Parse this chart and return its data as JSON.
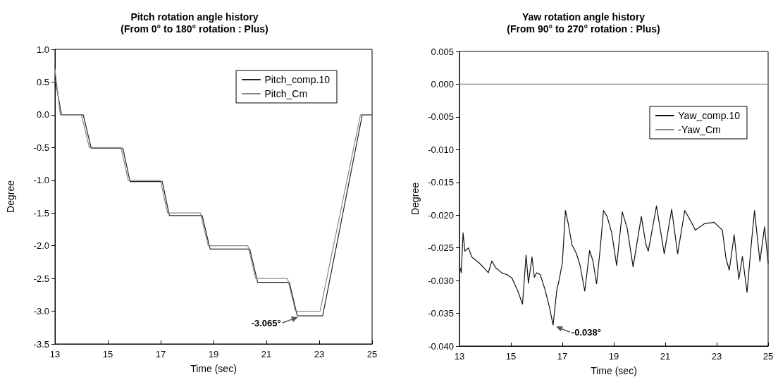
{
  "chart_data": [
    {
      "type": "line",
      "title": "Pitch rotation angle history",
      "subtitle": "(From 0° to 180° rotation : Plus)",
      "xlabel": "Time (sec)",
      "ylabel": "Degree",
      "xlim": [
        13,
        25
      ],
      "xticks": [
        13,
        15,
        17,
        19,
        21,
        23,
        25
      ],
      "ylim": [
        -3.5,
        1.0
      ],
      "yticks": [
        {
          "value": -3.5,
          "label": "-3.5"
        },
        {
          "value": -3,
          "label": "-3.0"
        },
        {
          "value": -2.5,
          "label": "-2.5"
        },
        {
          "value": -2,
          "label": "-2.0"
        },
        {
          "value": -1.5,
          "label": "-1.5"
        },
        {
          "value": -1,
          "label": "-1.0"
        },
        {
          "value": -0.5,
          "label": "-0.5"
        },
        {
          "value": 0,
          "label": "0.0"
        },
        {
          "value": 0.5,
          "label": "0.5"
        },
        {
          "value": 1,
          "label": "1.0"
        }
      ],
      "grid": false,
      "legend": "top right",
      "marker": "none",
      "line_style": "solid",
      "series": [
        {
          "name": "Pitch_comp.10",
          "color": "#222222",
          "x": [
            13,
            13.25,
            14.07,
            14.37,
            15.57,
            15.84,
            17.06,
            17.33,
            18.57,
            18.87,
            20.37,
            20.67,
            21.87,
            22.17,
            23.13,
            24.63,
            25
          ],
          "values": [
            0.55,
            0,
            0,
            -0.51,
            -0.51,
            -1.02,
            -1.02,
            -1.54,
            -1.54,
            -2.05,
            -2.05,
            -2.56,
            -2.56,
            -3.07,
            -3.07,
            0,
            0
          ]
        },
        {
          "name": "Pitch_Cm",
          "color": "#888888",
          "x": [
            13,
            13.2,
            14.0,
            14.3,
            15.5,
            15.77,
            16.99,
            17.26,
            18.5,
            18.8,
            20.3,
            20.6,
            21.8,
            22.1,
            23.03,
            24.56,
            25
          ],
          "values": [
            0.7,
            0,
            0,
            -0.5,
            -0.5,
            -1.0,
            -1.0,
            -1.5,
            -1.5,
            -2.0,
            -2.0,
            -2.5,
            -2.5,
            -3.0,
            -3.0,
            0,
            0
          ]
        }
      ],
      "annotations": [
        {
          "text": "-3.065°",
          "x": 22.3,
          "y": -3.07
        }
      ]
    },
    {
      "type": "line",
      "title": "Yaw rotation angle history",
      "subtitle": "(From 90° to 270° rotation : Plus)",
      "xlabel": "Time (sec)",
      "ylabel": "Degree",
      "xlim": [
        13,
        25
      ],
      "xticks": [
        13,
        15,
        17,
        19,
        21,
        23,
        25
      ],
      "ylim": [
        -0.04,
        0.005
      ],
      "yticks": [
        {
          "value": -0.04,
          "label": "-0.040"
        },
        {
          "value": -0.035,
          "label": "-0.035"
        },
        {
          "value": -0.03,
          "label": "-0.030"
        },
        {
          "value": -0.025,
          "label": "-0.025"
        },
        {
          "value": -0.02,
          "label": "-0.020"
        },
        {
          "value": -0.015,
          "label": "-0.015"
        },
        {
          "value": -0.01,
          "label": "-0.010"
        },
        {
          "value": -0.005,
          "label": "-0.005"
        },
        {
          "value": 0,
          "label": "0.000"
        },
        {
          "value": 0.005,
          "label": "0.005"
        }
      ],
      "grid": false,
      "legend": "top right",
      "marker": "none",
      "line_style": "solid",
      "series": [
        {
          "name": "Yaw_comp.10",
          "color": "#111111",
          "x": [
            13.0,
            13.07,
            13.14,
            13.21,
            13.35,
            13.48,
            13.76,
            13.94,
            14.12,
            14.26,
            14.4,
            14.67,
            14.86,
            15.04,
            15.27,
            15.45,
            15.59,
            15.68,
            15.82,
            15.91,
            16.0,
            16.14,
            16.32,
            16.5,
            16.64,
            16.78,
            16.87,
            17.0,
            17.12,
            17.23,
            17.37,
            17.55,
            17.69,
            17.87,
            18.06,
            18.19,
            18.33,
            18.47,
            18.6,
            18.74,
            18.92,
            19.11,
            19.33,
            19.52,
            19.75,
            20.07,
            20.25,
            20.34,
            20.66,
            20.96,
            21.25,
            21.48,
            21.76,
            21.99,
            22.17,
            22.53,
            22.9,
            23.22,
            23.36,
            23.49,
            23.68,
            23.86,
            24.0,
            24.18,
            24.36,
            24.47,
            24.68,
            24.86,
            25.0
          ],
          "values": [
            -0.0277,
            -0.0288,
            -0.0227,
            -0.0255,
            -0.025,
            -0.0264,
            -0.0273,
            -0.028,
            -0.0288,
            -0.027,
            -0.028,
            -0.0289,
            -0.0291,
            -0.0296,
            -0.0316,
            -0.0336,
            -0.0261,
            -0.0304,
            -0.0264,
            -0.0295,
            -0.0288,
            -0.0291,
            -0.0313,
            -0.0341,
            -0.0368,
            -0.0316,
            -0.03,
            -0.0273,
            -0.0193,
            -0.0213,
            -0.0245,
            -0.0259,
            -0.0277,
            -0.0316,
            -0.0254,
            -0.027,
            -0.0305,
            -0.0252,
            -0.0193,
            -0.0202,
            -0.0227,
            -0.0277,
            -0.0195,
            -0.022,
            -0.0279,
            -0.0202,
            -0.0245,
            -0.0255,
            -0.0186,
            -0.0259,
            -0.0191,
            -0.0259,
            -0.0193,
            -0.0209,
            -0.0223,
            -0.0213,
            -0.0211,
            -0.0223,
            -0.0266,
            -0.0284,
            -0.023,
            -0.0298,
            -0.0263,
            -0.0318,
            -0.0238,
            -0.0193,
            -0.0271,
            -0.0218,
            -0.0273
          ]
        },
        {
          "name": "-Yaw_Cm",
          "color": "#888888",
          "x": [
            13,
            25
          ],
          "values": [
            0,
            0
          ]
        }
      ],
      "annotations": [
        {
          "text": "-0.038°",
          "x": 16.64,
          "y": -0.0368
        }
      ]
    }
  ]
}
